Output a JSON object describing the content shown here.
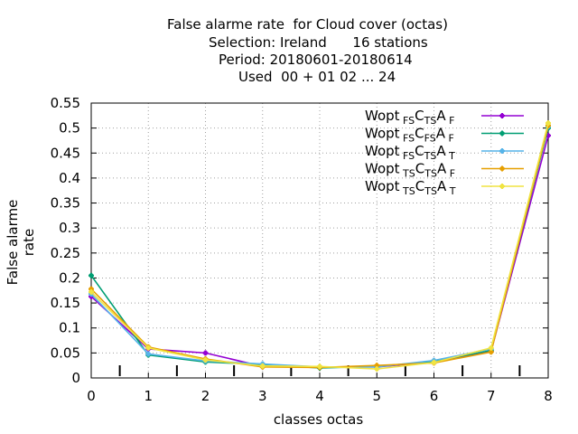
{
  "chart_data": {
    "type": "line",
    "title_lines": [
      "False alarme rate  for Cloud cover (octas)",
      "Selection: Ireland      16 stations",
      "Period: 20180601-20180614",
      "Used  00 + 01 02 ... 24"
    ],
    "xlabel": "classes octas",
    "ylabel": "False alarme rate",
    "x": [
      0,
      1,
      2,
      3,
      4,
      5,
      6,
      7,
      8
    ],
    "xlim": [
      0,
      8
    ],
    "ylim": [
      0,
      0.55
    ],
    "y_ticks": [
      "0",
      "0.05",
      "0.1",
      "0.15",
      "0.2",
      "0.25",
      "0.3",
      "0.35",
      "0.4",
      "0.45",
      "0.5",
      "0.55"
    ],
    "x_ticks": [
      "0",
      "1",
      "2",
      "3",
      "4",
      "5",
      "6",
      "7",
      "8"
    ],
    "grid": true,
    "legend_position": "top-right",
    "series": [
      {
        "name": "Wopt FS C TS A F",
        "legend": {
          "base": "Wopt",
          "sub1": "FS",
          "mid": "C",
          "sub2": "TS",
          "tail": "A",
          "sub3": "F"
        },
        "color": "#9400d3",
        "values": [
          0.163,
          0.058,
          0.05,
          0.023,
          0.022,
          0.022,
          0.032,
          0.053,
          0.485
        ]
      },
      {
        "name": "Wopt FS C FS A F",
        "legend": {
          "base": "Wopt",
          "sub1": "FS",
          "mid": "C",
          "sub2": "FS",
          "tail": "A",
          "sub3": "F"
        },
        "color": "#009e73",
        "values": [
          0.205,
          0.046,
          0.032,
          0.027,
          0.02,
          0.023,
          0.033,
          0.055,
          0.5
        ]
      },
      {
        "name": "Wopt FS C TS A T",
        "legend": {
          "base": "Wopt",
          "sub1": "FS",
          "mid": "C",
          "sub2": "TS",
          "tail": "A",
          "sub3": "T"
        },
        "color": "#56b4e9",
        "values": [
          0.168,
          0.048,
          0.034,
          0.028,
          0.022,
          0.022,
          0.035,
          0.058,
          0.503
        ]
      },
      {
        "name": "Wopt TS C TS A F",
        "legend": {
          "base": "Wopt",
          "sub1": "TS",
          "mid": "C",
          "sub2": "TS",
          "tail": "A",
          "sub3": "F"
        },
        "color": "#e69f00",
        "values": [
          0.178,
          0.062,
          0.038,
          0.022,
          0.021,
          0.025,
          0.03,
          0.052,
          0.505
        ]
      },
      {
        "name": "Wopt TS C TS A T",
        "legend": {
          "base": "Wopt",
          "sub1": "TS",
          "mid": "C",
          "sub2": "TS",
          "tail": "A",
          "sub3": "T"
        },
        "color": "#f0e442",
        "values": [
          0.172,
          0.06,
          0.036,
          0.024,
          0.023,
          0.018,
          0.031,
          0.06,
          0.51
        ]
      }
    ]
  }
}
